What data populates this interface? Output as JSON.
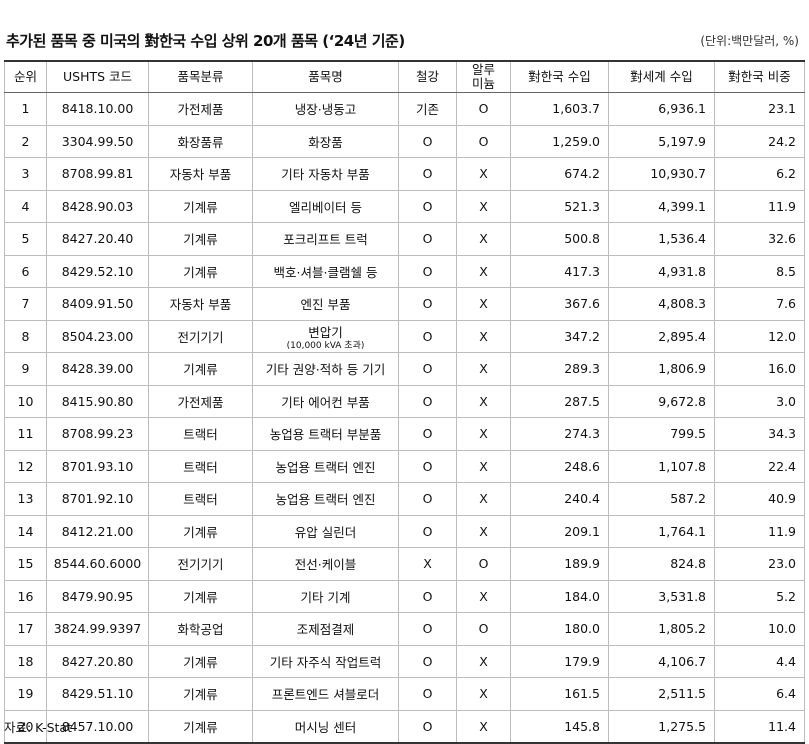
{
  "title": "추가된 품목 중 미국의 對한국 수입 상위 20개 품목 (‘24년 기준)",
  "unit": "(단위:백만달러, %)",
  "columns": [
    "순위",
    "USHTS 코드",
    "품목분류",
    "품목명",
    "철강",
    "알루\n미늄",
    "對한국 수입",
    "對세계 수입",
    "對한국 비중"
  ],
  "rows": [
    {
      "rank": "1",
      "code": "8418.10.00",
      "category": "가전제품",
      "item": "냉장·냉동고",
      "item_sub": "",
      "steel": "기존",
      "alu": "O",
      "kr_import": "1,603.7",
      "world_import": "6,936.1",
      "share": "23.1"
    },
    {
      "rank": "2",
      "code": "3304.99.50",
      "category": "화장품류",
      "item": "화장품",
      "item_sub": "",
      "steel": "O",
      "alu": "O",
      "kr_import": "1,259.0",
      "world_import": "5,197.9",
      "share": "24.2"
    },
    {
      "rank": "3",
      "code": "8708.99.81",
      "category": "자동차 부품",
      "item": "기타 자동차 부품",
      "item_sub": "",
      "steel": "O",
      "alu": "X",
      "kr_import": "674.2",
      "world_import": "10,930.7",
      "share": "6.2"
    },
    {
      "rank": "4",
      "code": "8428.90.03",
      "category": "기계류",
      "item": "엘리베이터 등",
      "item_sub": "",
      "steel": "O",
      "alu": "X",
      "kr_import": "521.3",
      "world_import": "4,399.1",
      "share": "11.9"
    },
    {
      "rank": "5",
      "code": "8427.20.40",
      "category": "기계류",
      "item": "포크리프트 트럭",
      "item_sub": "",
      "steel": "O",
      "alu": "X",
      "kr_import": "500.8",
      "world_import": "1,536.4",
      "share": "32.6"
    },
    {
      "rank": "6",
      "code": "8429.52.10",
      "category": "기계류",
      "item": "백호·셔블·클램쉘 등",
      "item_sub": "",
      "steel": "O",
      "alu": "X",
      "kr_import": "417.3",
      "world_import": "4,931.8",
      "share": "8.5"
    },
    {
      "rank": "7",
      "code": "8409.91.50",
      "category": "자동차 부품",
      "item": "엔진 부품",
      "item_sub": "",
      "steel": "O",
      "alu": "X",
      "kr_import": "367.6",
      "world_import": "4,808.3",
      "share": "7.6"
    },
    {
      "rank": "8",
      "code": "8504.23.00",
      "category": "전기기기",
      "item": "변압기",
      "item_sub": "(10,000 kVA 초과)",
      "steel": "O",
      "alu": "X",
      "kr_import": "347.2",
      "world_import": "2,895.4",
      "share": "12.0"
    },
    {
      "rank": "9",
      "code": "8428.39.00",
      "category": "기계류",
      "item": "기타 권양·적하 등 기기",
      "item_sub": "",
      "steel": "O",
      "alu": "X",
      "kr_import": "289.3",
      "world_import": "1,806.9",
      "share": "16.0"
    },
    {
      "rank": "10",
      "code": "8415.90.80",
      "category": "가전제품",
      "item": "기타 에어컨 부품",
      "item_sub": "",
      "steel": "O",
      "alu": "X",
      "kr_import": "287.5",
      "world_import": "9,672.8",
      "share": "3.0"
    },
    {
      "rank": "11",
      "code": "8708.99.23",
      "category": "트랙터",
      "item": "농업용 트랙터 부분품",
      "item_sub": "",
      "steel": "O",
      "alu": "X",
      "kr_import": "274.3",
      "world_import": "799.5",
      "share": "34.3"
    },
    {
      "rank": "12",
      "code": "8701.93.10",
      "category": "트랙터",
      "item": "농업용 트랙터 엔진",
      "item_sub": "",
      "steel": "O",
      "alu": "X",
      "kr_import": "248.6",
      "world_import": "1,107.8",
      "share": "22.4"
    },
    {
      "rank": "13",
      "code": "8701.92.10",
      "category": "트랙터",
      "item": "농업용 트랙터 엔진",
      "item_sub": "",
      "steel": "O",
      "alu": "X",
      "kr_import": "240.4",
      "world_import": "587.2",
      "share": "40.9"
    },
    {
      "rank": "14",
      "code": "8412.21.00",
      "category": "기계류",
      "item": "유압 실린더",
      "item_sub": "",
      "steel": "O",
      "alu": "X",
      "kr_import": "209.1",
      "world_import": "1,764.1",
      "share": "11.9"
    },
    {
      "rank": "15",
      "code": "8544.60.6000",
      "category": "전기기기",
      "item": "전선·케이블",
      "item_sub": "",
      "steel": "X",
      "alu": "O",
      "kr_import": "189.9",
      "world_import": "824.8",
      "share": "23.0"
    },
    {
      "rank": "16",
      "code": "8479.90.95",
      "category": "기계류",
      "item": "기타 기계",
      "item_sub": "",
      "steel": "O",
      "alu": "X",
      "kr_import": "184.0",
      "world_import": "3,531.8",
      "share": "5.2"
    },
    {
      "rank": "17",
      "code": "3824.99.9397",
      "category": "화학공업",
      "item": "조제점결제",
      "item_sub": "",
      "steel": "O",
      "alu": "O",
      "kr_import": "180.0",
      "world_import": "1,805.2",
      "share": "10.0"
    },
    {
      "rank": "18",
      "code": "8427.20.80",
      "category": "기계류",
      "item": "기타 자주식 작업트럭",
      "item_sub": "",
      "steel": "O",
      "alu": "X",
      "kr_import": "179.9",
      "world_import": "4,106.7",
      "share": "4.4"
    },
    {
      "rank": "19",
      "code": "8429.51.10",
      "category": "기계류",
      "item": "프론트엔드 셔블로더",
      "item_sub": "",
      "steel": "O",
      "alu": "X",
      "kr_import": "161.5",
      "world_import": "2,511.5",
      "share": "6.4"
    },
    {
      "rank": "20",
      "code": "8457.10.00",
      "category": "기계류",
      "item": "머시닝 센터",
      "item_sub": "",
      "steel": "O",
      "alu": "X",
      "kr_import": "145.8",
      "world_import": "1,275.5",
      "share": "11.4"
    }
  ],
  "source": "자료: K-Stat"
}
